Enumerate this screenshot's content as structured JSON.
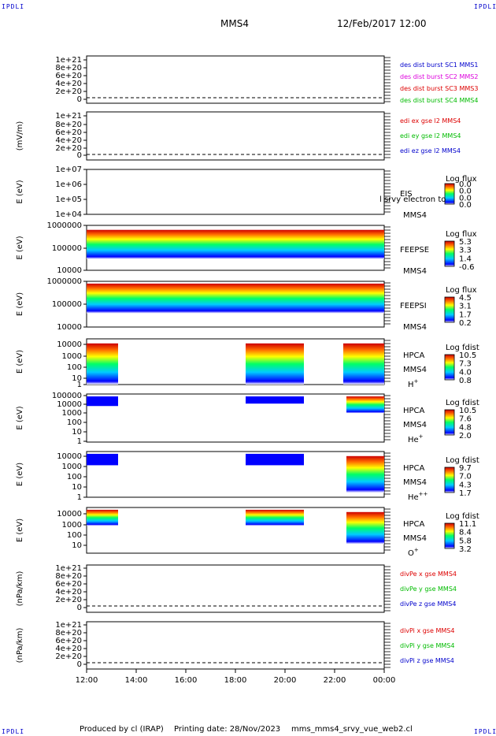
{
  "corner_label": "IPDLI",
  "header": {
    "spacecraft": "MMS4",
    "datetime": "12/Feb/2017 12:00"
  },
  "footer": {
    "produced_by": "Produced by cl (IRAP)",
    "printing_date": "Printing date: 28/Nov/2023",
    "script_name": "mms_mms4_srvy_vue_web2.cl"
  },
  "x_axis": {
    "ticks": [
      "12:00",
      "14:00",
      "16:00",
      "18:00",
      "20:00",
      "22:00",
      "00:00"
    ]
  },
  "colors": {
    "blue": "#0000cc",
    "red": "#dd0000",
    "green": "#00bb00",
    "magenta": "#dd00dd"
  },
  "chart_data": [
    {
      "type": "line",
      "panel": "des-dist-burst",
      "ylabel": "",
      "y_ticks": [
        "1e+21",
        "8e+20",
        "6e+20",
        "4e+20",
        "2e+20",
        "0"
      ],
      "series": [
        {
          "name": "des dist burst SC1 MMS1",
          "color": "#0000cc"
        },
        {
          "name": "des dist burst SC2 MMS2",
          "color": "#dd00dd"
        },
        {
          "name": "des dist burst SC3 MMS3",
          "color": "#dd0000"
        },
        {
          "name": "des dist burst SC4 MMS4",
          "color": "#00bb00"
        }
      ]
    },
    {
      "type": "line",
      "panel": "edi-e",
      "ylabel": "(mV/m)",
      "y_ticks": [
        "1e+21",
        "8e+20",
        "6e+20",
        "4e+20",
        "2e+20",
        "0"
      ],
      "series": [
        {
          "name": "edi ex gse l2 MMS4",
          "color": "#dd0000"
        },
        {
          "name": "edi ey gse l2 MMS4",
          "color": "#00bb00"
        },
        {
          "name": "edi ez gse l2 MMS4",
          "color": "#0000cc"
        }
      ]
    },
    {
      "type": "heatmap",
      "panel": "eis",
      "ylabel": "E (eV)",
      "y_ticks": [
        "1e+07",
        "1e+06",
        "1e+05",
        "1e+04"
      ],
      "instrument": "EIS",
      "overlay_text": "l srvy electron to",
      "spacecraft": "MMS4",
      "colorbar": {
        "title": "Log flux",
        "ticks": [
          "0.0",
          "0.0",
          "0.0",
          "0.0"
        ]
      }
    },
    {
      "type": "heatmap",
      "panel": "feeps-e",
      "ylabel": "E (eV)",
      "y_ticks": [
        "1000000",
        "100000",
        "10000"
      ],
      "instrument": "FEEPSE",
      "spacecraft": "MMS4",
      "colorbar": {
        "title": "Log flux",
        "ticks": [
          "5.3",
          "3.3",
          "1.4",
          "-0.6"
        ]
      }
    },
    {
      "type": "heatmap",
      "panel": "feeps-i",
      "ylabel": "E (eV)",
      "y_ticks": [
        "1000000",
        "100000",
        "10000"
      ],
      "instrument": "FEEPSI",
      "spacecraft": "MMS4",
      "colorbar": {
        "title": "Log flux",
        "ticks": [
          "4.5",
          "3.1",
          "1.7",
          "0.2"
        ]
      }
    },
    {
      "type": "heatmap",
      "panel": "hpca-h",
      "ylabel": "E (eV)",
      "y_ticks": [
        "10000",
        "1000",
        "100",
        "10",
        "1"
      ],
      "instrument": "HPCA",
      "spacecraft": "MMS4",
      "species": "H",
      "species_sup": "+",
      "colorbar": {
        "title": "Log fdist",
        "ticks": [
          "10.5",
          "7.3",
          "4.0",
          "0.8"
        ]
      }
    },
    {
      "type": "heatmap",
      "panel": "hpca-he",
      "ylabel": "E (eV)",
      "y_ticks": [
        "100000",
        "10000",
        "1000",
        "100",
        "10",
        "1"
      ],
      "instrument": "HPCA",
      "spacecraft": "MMS4",
      "species": "He",
      "species_sup": "+",
      "colorbar": {
        "title": "Log fdist",
        "ticks": [
          "10.5",
          "7.6",
          "4.8",
          "2.0"
        ]
      }
    },
    {
      "type": "heatmap",
      "panel": "hpca-he2",
      "ylabel": "E (eV)",
      "y_ticks": [
        "10000",
        "1000",
        "100",
        "10",
        "1"
      ],
      "instrument": "HPCA",
      "spacecraft": "MMS4",
      "species": "He",
      "species_sup": "++",
      "colorbar": {
        "title": "Log fdist",
        "ticks": [
          "9.7",
          "7.0",
          "4.3",
          "1.7"
        ]
      }
    },
    {
      "type": "heatmap",
      "panel": "hpca-o",
      "ylabel": "E (eV)",
      "y_ticks": [
        "10000",
        "1000",
        "100",
        "10"
      ],
      "instrument": "HPCA",
      "spacecraft": "MMS4",
      "species": "O",
      "species_sup": "+",
      "colorbar": {
        "title": "Log fdist",
        "ticks": [
          "11.1",
          "8.4",
          "5.8",
          "3.2"
        ]
      }
    },
    {
      "type": "line",
      "panel": "divpe",
      "ylabel": "(nPa/km)",
      "y_ticks": [
        "1e+21",
        "8e+20",
        "6e+20",
        "4e+20",
        "2e+20",
        "0"
      ],
      "series": [
        {
          "name": "divPe x gse MMS4",
          "color": "#dd0000"
        },
        {
          "name": "divPe y gse MMS4",
          "color": "#00bb00"
        },
        {
          "name": "divPe z gse MMS4",
          "color": "#0000cc"
        }
      ]
    },
    {
      "type": "line",
      "panel": "divpi",
      "ylabel": "(nPa/km)",
      "y_ticks": [
        "1e+21",
        "8e+20",
        "6e+20",
        "4e+20",
        "2e+20",
        "0"
      ],
      "series": [
        {
          "name": "divPi x gse MMS4",
          "color": "#dd0000"
        },
        {
          "name": "divPi y gse MMS4",
          "color": "#00bb00"
        },
        {
          "name": "divPi z gse MMS4",
          "color": "#0000cc"
        }
      ]
    }
  ]
}
